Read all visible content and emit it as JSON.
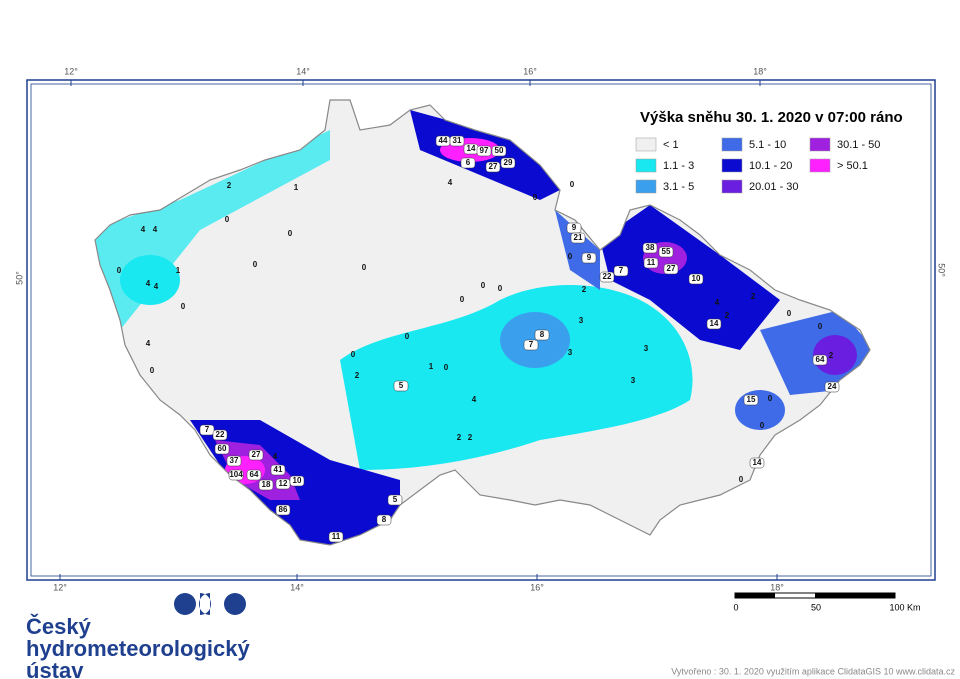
{
  "title": "Výška sněhu 30. 1. 2020 v 07:00 ráno",
  "legend": [
    {
      "label": "< 1",
      "color": "#f0f0f0"
    },
    {
      "label": "1.1 - 3",
      "color": "#19e8f0"
    },
    {
      "label": "3.1 - 5",
      "color": "#3aa0ee"
    },
    {
      "label": "5.1 - 10",
      "color": "#3f6be8"
    },
    {
      "label": "10.1 - 20",
      "color": "#0a0ad0"
    },
    {
      "label": "20.01 - 30",
      "color": "#6a1ee0"
    },
    {
      "label": "30.1 - 50",
      "color": "#a020e0"
    },
    {
      "label": "> 50.1",
      "color": "#ff20ff"
    }
  ],
  "graticule": {
    "lon": [
      "12°",
      "14°",
      "16°",
      "18°"
    ],
    "lat": [
      "50°"
    ]
  },
  "stations": [
    44,
    31,
    14,
    97,
    50,
    6,
    27,
    29,
    4,
    0,
    0,
    38,
    55,
    11,
    27,
    7,
    22,
    10,
    4,
    2,
    14,
    2,
    0,
    0,
    64,
    2,
    24,
    15,
    0,
    0,
    14,
    0,
    7,
    22,
    60,
    37,
    27,
    4,
    104,
    64,
    41,
    18,
    12,
    10,
    86,
    11,
    8,
    5,
    7,
    8,
    3,
    3,
    3,
    3,
    4,
    5,
    2,
    1,
    2,
    2,
    0,
    2,
    9,
    21,
    0,
    9,
    2,
    1,
    4,
    4,
    4,
    4,
    1,
    0,
    0,
    4,
    0,
    0,
    0,
    0,
    0,
    0,
    0,
    0,
    0,
    0
  ],
  "scale_bar": [
    "0",
    "50",
    "100 Km"
  ],
  "logo": [
    "Český",
    "hydrometeorologický",
    "ústav"
  ],
  "credit": "Vytvořeno : 30. 1. 2020 využitím aplikace ClidataGIS 10 www.clidata.cz"
}
